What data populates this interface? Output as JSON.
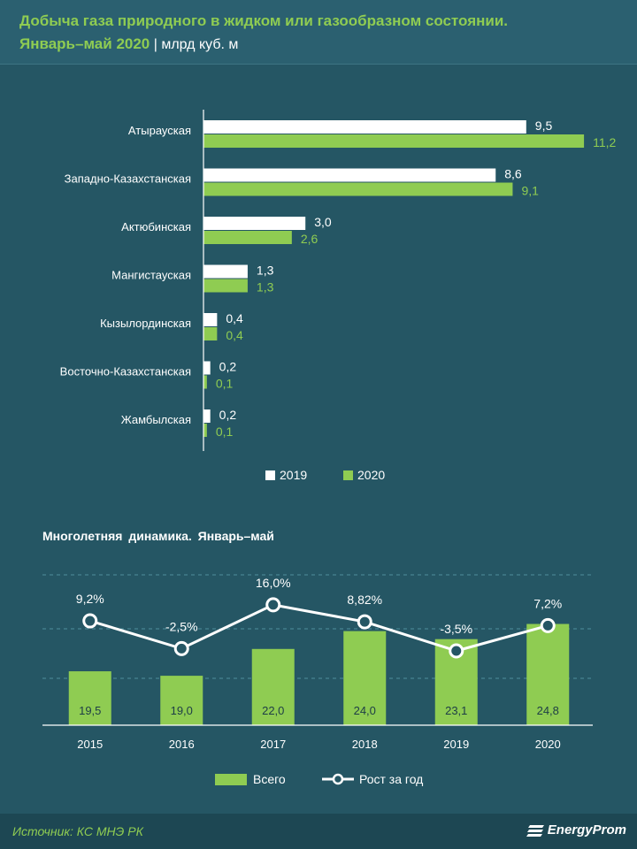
{
  "header": {
    "title": "Добыча газа природного в жидком или газообразном состоянии.",
    "subtitle_period": "Январь–май 2020",
    "subtitle_separator": " | ",
    "subtitle_unit": "млрд куб. м"
  },
  "chart_data": [
    {
      "type": "bar",
      "orientation": "horizontal",
      "title": "Добыча газа природного в жидком или газообразном состоянии. Январь–май 2020",
      "unit": "млрд куб. м",
      "categories": [
        "Атырауская",
        "Западно-Казахстанская",
        "Актюбинская",
        "Мангистауская",
        "Кызылординская",
        "Восточно-Казахстанская",
        "Жамбылская"
      ],
      "series": [
        {
          "name": "2019",
          "color": "#ffffff",
          "values": [
            9.5,
            8.6,
            3.0,
            1.3,
            0.4,
            0.2,
            0.2
          ],
          "labels": [
            "9,5",
            "8,6",
            "3,0",
            "1,3",
            "0,4",
            "0,2",
            "0,2"
          ]
        },
        {
          "name": "2020",
          "color": "#8fcc52",
          "values": [
            11.2,
            9.1,
            2.6,
            1.3,
            0.4,
            0.1,
            0.1
          ],
          "labels": [
            "11,2",
            "9,1",
            "2,6",
            "1,3",
            "0,4",
            "0,1",
            "0,1"
          ]
        }
      ],
      "xlim": [
        0,
        12
      ],
      "grid": false,
      "legend_position": "bottom"
    },
    {
      "type": "bar+line",
      "title": "Многолетняя динамика. Январь–май",
      "categories": [
        "2015",
        "2016",
        "2017",
        "2018",
        "2019",
        "2020"
      ],
      "series": [
        {
          "name": "Всего",
          "type": "bar",
          "color": "#8fcc52",
          "values": [
            19.5,
            19.0,
            22.0,
            24.0,
            23.1,
            24.8
          ],
          "labels": [
            "19,5",
            "19,0",
            "22,0",
            "24,0",
            "23,1",
            "24,8"
          ]
        },
        {
          "name": "Рост за год",
          "type": "line",
          "color": "#ffffff",
          "values": [
            9.2,
            -2.5,
            16.0,
            8.82,
            -3.5,
            7.2
          ],
          "labels": [
            "9,2%",
            "-2,5%",
            "16,0%",
            "8,82%",
            "-3,5%",
            "7,2%"
          ]
        }
      ],
      "grid": true,
      "legend_position": "bottom"
    }
  ],
  "footer": {
    "source": "Источник: КС МНЭ РК",
    "logo": "EnergyProm"
  }
}
